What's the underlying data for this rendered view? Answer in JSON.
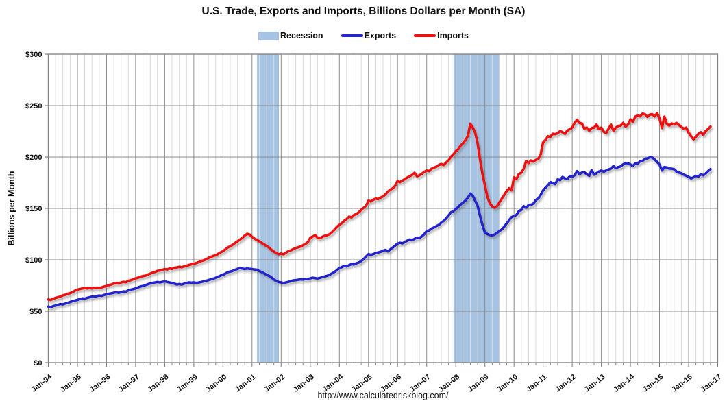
{
  "footer": {
    "url_text": "http://www.calculatedriskblog.com/"
  },
  "chart_data": {
    "type": "line",
    "title": "U.S. Trade, Exports and Imports, Billions Dollars per Month (SA)",
    "ylabel": "Billions per Month",
    "frequency": "monthly",
    "x_start_label": "Jan-94",
    "x_end_label": "Oct-16",
    "grid": "major-yearly, minor-quarterly, horizontal every $50",
    "legend_position": "top-center",
    "colors": {
      "major_grid": "#8C8C8C",
      "minor_grid": "#D9D9D9",
      "border": "#7F7F7F"
    },
    "y_axis": {
      "range": [
        0,
        300
      ],
      "tick_step": 50,
      "tick_labels": [
        "$0",
        "$50",
        "$100",
        "$150",
        "$200",
        "$250",
        "$300"
      ]
    },
    "x_axis": {
      "start_year": 1994,
      "end_year": 2017,
      "tick_labels": [
        "Jan-94",
        "Jan-95",
        "Jan-96",
        "Jan-97",
        "Jan-98",
        "Jan-99",
        "Jan-00",
        "Jan-01",
        "Jan-02",
        "Jan-03",
        "Jan-04",
        "Jan-05",
        "Jan-06",
        "Jan-07",
        "Jan-08",
        "Jan-09",
        "Jan-10",
        "Jan-11",
        "Jan-12",
        "Jan-13",
        "Jan-14",
        "Jan-15",
        "Jan-16",
        "Jan-17"
      ]
    },
    "recession": {
      "label": "Recession",
      "color": "#A6C3E4",
      "periods": [
        {
          "start": 2001.17,
          "end": 2001.92
        },
        {
          "start": 2007.92,
          "end": 2009.5
        }
      ]
    },
    "series": [
      {
        "name": "Exports",
        "color": "#2424CC",
        "values": [
          54.5,
          53.8,
          55.0,
          55.5,
          56.2,
          57.0,
          56.6,
          57.5,
          58.2,
          59.0,
          59.8,
          60.4,
          61.0,
          61.8,
          62.5,
          62.2,
          63.0,
          63.6,
          64.3,
          64.0,
          64.8,
          65.3,
          64.9,
          65.8,
          66.4,
          67.0,
          67.4,
          68.0,
          68.4,
          67.9,
          68.5,
          69.3,
          69.0,
          70.4,
          71.0,
          71.6,
          72.2,
          73.2,
          74.0,
          74.6,
          75.4,
          76.2,
          77.0,
          77.6,
          78.0,
          78.4,
          78.0,
          78.6,
          79.0,
          78.4,
          78.0,
          77.4,
          76.8,
          76.0,
          76.4,
          75.9,
          76.8,
          77.4,
          78.0,
          77.8,
          78.0,
          77.5,
          77.9,
          78.4,
          79.0,
          79.6,
          80.2,
          81.0,
          81.6,
          82.6,
          83.6,
          84.6,
          85.5,
          86.6,
          88.0,
          88.6,
          89.2,
          90.2,
          91.2,
          92.0,
          91.5,
          91.0,
          91.6,
          91.2,
          91.0,
          90.6,
          90.4,
          89.0,
          88.0,
          86.8,
          85.4,
          84.4,
          82.8,
          80.8,
          79.4,
          78.4,
          78.0,
          77.4,
          78.0,
          78.6,
          79.2,
          80.0,
          80.2,
          80.6,
          81.0,
          80.8,
          81.4,
          81.2,
          82.0,
          82.6,
          82.2,
          81.8,
          82.4,
          83.2,
          83.8,
          84.4,
          85.6,
          86.8,
          88.2,
          90.0,
          92.0,
          92.8,
          94.2,
          93.6,
          94.8,
          95.8,
          95.4,
          96.6,
          97.4,
          98.8,
          100.6,
          103.2,
          105.6,
          104.8,
          105.6,
          106.6,
          107.2,
          107.8,
          108.8,
          109.6,
          108.2,
          110.2,
          112.0,
          113.8,
          115.8,
          116.6,
          116.0,
          117.4,
          118.6,
          119.8,
          119.0,
          120.4,
          121.6,
          121.2,
          122.8,
          125.0,
          128.0,
          128.6,
          130.4,
          131.4,
          132.8,
          134.0,
          136.2,
          137.8,
          140.2,
          143.2,
          146.2,
          147.4,
          149.2,
          151.4,
          153.8,
          155.6,
          157.8,
          160.4,
          164.4,
          162.4,
          157.4,
          152.4,
          142.6,
          134.0,
          126.5,
          125.0,
          124.2,
          123.6,
          124.6,
          126.2,
          128.0,
          129.6,
          132.4,
          135.4,
          138.6,
          141.6,
          142.6,
          143.6,
          147.4,
          148.6,
          152.2,
          150.6,
          153.2,
          153.6,
          154.6,
          158.2,
          159.6,
          163.2,
          167.6,
          170.2,
          172.6,
          175.6,
          174.6,
          173.6,
          178.2,
          177.6,
          180.6,
          179.2,
          178.6,
          181.2,
          180.8,
          182.2,
          186.2,
          183.2,
          184.8,
          185.2,
          183.2,
          181.8,
          187.2,
          182.8,
          184.2,
          185.8,
          186.8,
          185.8,
          186.8,
          187.8,
          188.8,
          191.2,
          189.2,
          190.2,
          190.8,
          192.8,
          194.2,
          193.8,
          192.8,
          191.2,
          193.8,
          193.6,
          195.8,
          196.2,
          198.2,
          198.6,
          199.8,
          199.6,
          197.6,
          195.2,
          192.8,
          186.8,
          190.2,
          189.8,
          188.8,
          188.6,
          188.2,
          185.8,
          184.8,
          184.2,
          182.8,
          181.8,
          180.6,
          179.2,
          180.2,
          181.6,
          180.8,
          183.2,
          182.2,
          183.8,
          186.2,
          188.2
        ]
      },
      {
        "name": "Imports",
        "color": "#EE1111",
        "values": [
          61.5,
          61.0,
          62.0,
          63.0,
          63.6,
          64.4,
          65.4,
          66.0,
          67.0,
          67.6,
          68.6,
          70.0,
          71.0,
          71.6,
          72.2,
          72.6,
          72.2,
          72.6,
          72.2,
          72.6,
          73.0,
          72.6,
          73.2,
          74.0,
          74.6,
          75.4,
          76.0,
          77.0,
          77.4,
          77.0,
          78.0,
          78.6,
          78.2,
          79.6,
          80.2,
          81.0,
          82.0,
          82.6,
          83.6,
          84.2,
          84.6,
          85.6,
          86.6,
          87.6,
          88.2,
          89.2,
          89.6,
          90.2,
          91.0,
          90.6,
          91.6,
          91.2,
          92.2,
          92.6,
          93.2,
          92.8,
          93.6,
          94.2,
          95.0,
          95.6,
          96.2,
          96.8,
          97.8,
          98.8,
          99.4,
          100.4,
          101.8,
          102.8,
          103.8,
          104.4,
          105.8,
          107.2,
          108.4,
          110.2,
          112.0,
          113.2,
          114.6,
          116.4,
          118.0,
          119.6,
          121.4,
          123.6,
          125.4,
          124.6,
          122.4,
          120.6,
          119.4,
          118.0,
          116.4,
          115.0,
          113.4,
          112.0,
          109.6,
          108.0,
          106.4,
          105.4,
          106.2,
          105.4,
          107.0,
          108.4,
          109.2,
          110.4,
          111.6,
          112.2,
          113.0,
          114.2,
          115.4,
          117.2,
          121.4,
          122.6,
          124.0,
          121.6,
          121.0,
          122.4,
          123.4,
          124.0,
          125.0,
          127.0,
          129.4,
          132.0,
          134.0,
          135.6,
          138.0,
          139.6,
          142.0,
          141.2,
          143.6,
          144.6,
          146.2,
          148.6,
          150.6,
          152.6,
          157.6,
          156.8,
          158.4,
          159.6,
          159.0,
          160.6,
          161.6,
          163.6,
          166.4,
          168.2,
          169.6,
          172.0,
          176.6,
          175.6,
          177.0,
          178.6,
          180.0,
          181.2,
          182.6,
          184.6,
          181.2,
          182.2,
          183.6,
          185.6,
          186.8,
          186.2,
          188.6,
          189.6,
          190.6,
          192.2,
          193.2,
          192.2,
          194.6,
          196.6,
          200.2,
          202.6,
          205.6,
          207.6,
          211.2,
          213.6,
          216.6,
          220.6,
          232.4,
          228.6,
          223.6,
          213.2,
          197.6,
          183.6,
          172.4,
          161.6,
          155.0,
          152.0,
          150.6,
          152.2,
          156.0,
          159.6,
          163.2,
          167.0,
          169.6,
          167.6,
          180.2,
          178.6,
          183.6,
          184.6,
          188.6,
          196.2,
          194.2,
          196.6,
          195.6,
          197.2,
          198.2,
          202.6,
          214.2,
          216.6,
          220.2,
          219.6,
          222.6,
          222.2,
          223.2,
          225.2,
          224.2,
          222.6,
          225.6,
          227.2,
          228.6,
          233.2,
          236.2,
          233.2,
          232.6,
          227.6,
          228.6,
          225.6,
          228.2,
          228.6,
          231.6,
          227.2,
          228.6,
          224.6,
          223.2,
          227.6,
          231.6,
          225.6,
          228.6,
          230.2,
          230.6,
          233.2,
          229.6,
          231.6,
          236.6,
          234.2,
          239.2,
          240.6,
          239.6,
          242.2,
          241.6,
          239.2,
          241.2,
          241.6,
          239.6,
          242.6,
          237.6,
          228.2,
          239.2,
          232.2,
          230.6,
          232.6,
          231.6,
          233.2,
          231.2,
          229.2,
          227.6,
          228.6,
          223.6,
          220.2,
          217.2,
          219.6,
          222.6,
          224.2,
          221.6,
          225.2,
          227.2,
          229.6
        ]
      }
    ]
  }
}
